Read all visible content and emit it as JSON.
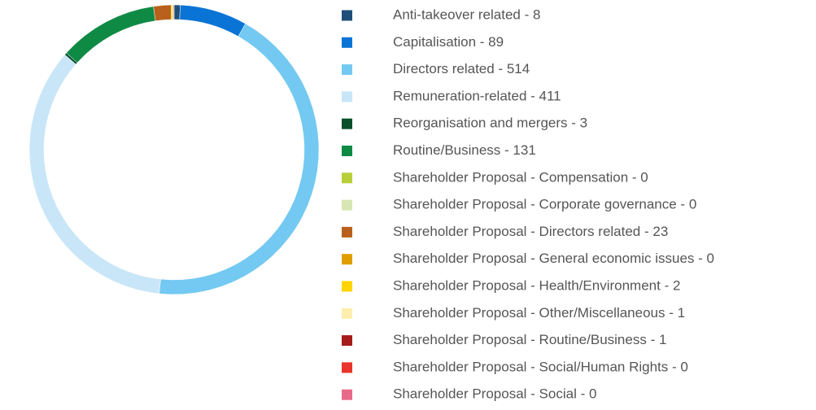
{
  "chart_data": {
    "type": "donut",
    "categories": [
      "Anti-takeover related - 8",
      "Capitalisation - 89",
      "Directors related - 514",
      "Remuneration-related - 411",
      "Reorganisation and mergers - 3",
      "Routine/Business - 131",
      "Shareholder Proposal - Compensation - 0",
      "Shareholder Proposal - Corporate governance - 0",
      "Shareholder Proposal - Directors related - 23",
      "Shareholder Proposal - General economic issues - 0",
      "Shareholder Proposal - Health/Environment - 2",
      "Shareholder Proposal - Other/Miscellaneous - 1",
      "Shareholder Proposal - Routine/Business - 1",
      "Shareholder Proposal - Social/Human Rights - 0",
      "Shareholder Proposal - Social - 0"
    ],
    "values": [
      8,
      89,
      514,
      411,
      3,
      131,
      0,
      0,
      23,
      0,
      2,
      1,
      1,
      0,
      0
    ],
    "colors": [
      "#1f4e79",
      "#0a74d6",
      "#73c9f1",
      "#c9e6f8",
      "#0b4f2a",
      "#0e8a45",
      "#b8cf3a",
      "#d8e6b4",
      "#b8601c",
      "#e09d00",
      "#ffd400",
      "#fdeeb0",
      "#a51c1c",
      "#e8342a",
      "#e86a8a"
    ],
    "legend": "right"
  }
}
